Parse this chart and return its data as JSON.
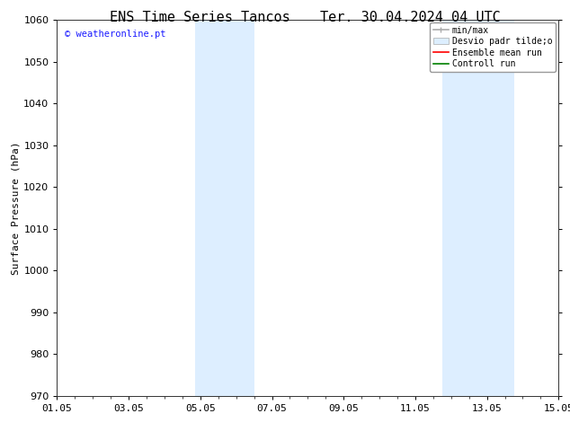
{
  "title_left": "ENS Time Series Tancos",
  "title_right": "Ter. 30.04.2024 04 UTC",
  "ylabel": "Surface Pressure (hPa)",
  "background_color": "#ffffff",
  "plot_bg_color": "#ffffff",
  "ylim": [
    970,
    1060
  ],
  "yticks": [
    970,
    980,
    990,
    1000,
    1010,
    1020,
    1030,
    1040,
    1050,
    1060
  ],
  "xlim": [
    0,
    14
  ],
  "xtick_labels": [
    "01.05",
    "03.05",
    "05.05",
    "07.05",
    "09.05",
    "11.05",
    "13.05",
    "15.05"
  ],
  "xtick_positions": [
    0,
    2,
    4,
    6,
    8,
    10,
    12,
    14
  ],
  "shaded_regions": [
    {
      "start": 3.85,
      "end": 5.5,
      "color": "#ddeeff"
    },
    {
      "start": 10.75,
      "end": 12.75,
      "color": "#ddeeff"
    }
  ],
  "watermark_text": "© weatheronline.pt",
  "watermark_color": "#1a1aff",
  "title_fontsize": 11,
  "axis_label_fontsize": 8,
  "tick_fontsize": 8,
  "legend_fontsize": 7,
  "minmax_color": "#aaaaaa",
  "desvio_facecolor": "#ddeeff",
  "desvio_edgecolor": "#aaaaaa",
  "ensemble_color": "#ff0000",
  "control_color": "#008000",
  "legend_label_minmax": "min/max",
  "legend_label_desvio": "Desvio padr tilde;o",
  "legend_label_ensemble": "Ensemble mean run",
  "legend_label_control": "Controll run"
}
